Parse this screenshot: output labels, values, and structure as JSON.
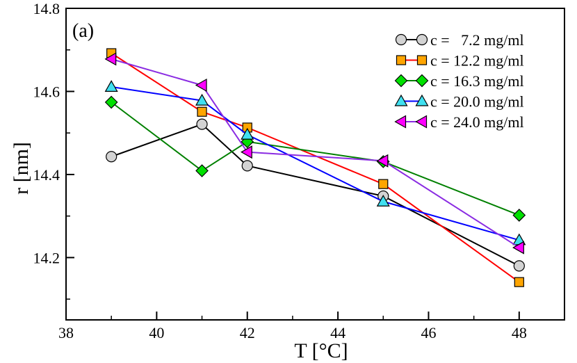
{
  "chart_data": {
    "type": "line",
    "panel_label": "(a)",
    "xlabel": "T [°C]",
    "ylabel": "r [nm]",
    "xlim": [
      38,
      49
    ],
    "ylim": [
      14.05,
      14.8
    ],
    "xticks": [
      38,
      40,
      42,
      44,
      46,
      48
    ],
    "yticks": [
      14.2,
      14.4,
      14.6,
      14.8
    ],
    "xtick_labels": [
      "38",
      "40",
      "42",
      "44",
      "46",
      "48"
    ],
    "ytick_labels": [
      "14.2",
      "14.4",
      "14.6",
      "14.8"
    ],
    "x": [
      39,
      41,
      42,
      45,
      48
    ],
    "legend_position": "top-right",
    "series": [
      {
        "name": "c =   7.2 mg/ml",
        "marker": "circle",
        "color": "#000000",
        "fill": "#d3d3d3",
        "values": [
          14.443,
          14.521,
          14.421,
          14.348,
          14.18
        ]
      },
      {
        "name": "c = 12.2 mg/ml",
        "marker": "square",
        "color": "#ff0000",
        "fill": "#ffa500",
        "values": [
          14.692,
          14.551,
          14.513,
          14.377,
          14.141
        ]
      },
      {
        "name": "c = 16.3 mg/ml",
        "marker": "diamond",
        "color": "#008000",
        "fill": "#00e000",
        "values": [
          14.574,
          14.409,
          14.479,
          14.431,
          14.302
        ]
      },
      {
        "name": "c = 20.0 mg/ml",
        "marker": "triangle-up",
        "color": "#0000ff",
        "fill": "#40e0f0",
        "values": [
          14.611,
          14.578,
          14.496,
          14.335,
          14.242
        ]
      },
      {
        "name": "c = 24.0 mg/ml",
        "marker": "triangle-left",
        "color": "#8a2be2",
        "fill": "#ff00ff",
        "values": [
          14.678,
          14.615,
          14.454,
          14.433,
          14.224
        ]
      }
    ]
  }
}
